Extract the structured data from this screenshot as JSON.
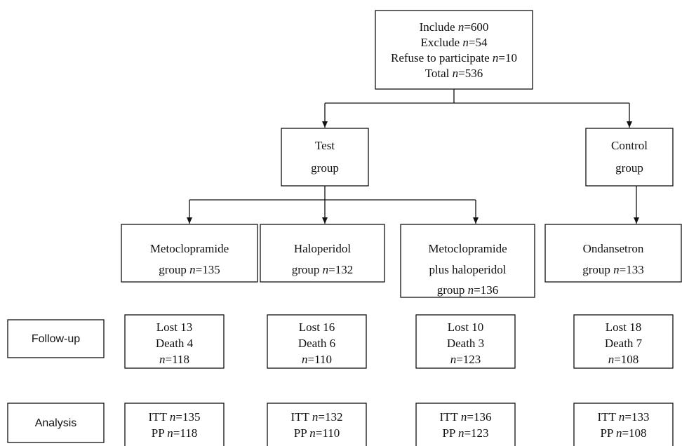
{
  "enrollment": {
    "lines": [
      "Include n=600",
      "Exclude n=54",
      "Refuse to participate n=10",
      "Total n=536"
    ]
  },
  "groups": [
    {
      "lines": [
        "Test",
        "group"
      ]
    },
    {
      "lines": [
        "Control",
        "group"
      ]
    }
  ],
  "arms": [
    {
      "lines": [
        "Metoclopramide",
        "group n=135"
      ]
    },
    {
      "lines": [
        "Haloperidol",
        "group n=132"
      ]
    },
    {
      "lines": [
        "Metoclopramide",
        "plus haloperidol",
        "group n=136"
      ]
    },
    {
      "lines": [
        "Ondansetron",
        "group n=133"
      ]
    }
  ],
  "follow_up": {
    "label": "Follow-up",
    "boxes": [
      {
        "lines": [
          "Lost 13",
          "Death 4",
          "n=118"
        ]
      },
      {
        "lines": [
          "Lost 16",
          "Death 6",
          "n=110"
        ]
      },
      {
        "lines": [
          "Lost 10",
          "Death 3",
          "n=123"
        ]
      },
      {
        "lines": [
          "Lost 18",
          "Death 7",
          "n=108"
        ]
      }
    ]
  },
  "analysis": {
    "label": "Analysis",
    "boxes": [
      {
        "lines": [
          "ITT n=135",
          "PP n=118"
        ]
      },
      {
        "lines": [
          "ITT n=132",
          "PP n=110"
        ]
      },
      {
        "lines": [
          "ITT n=136",
          "PP n=123"
        ]
      },
      {
        "lines": [
          "ITT n=133",
          "PP n=108"
        ]
      }
    ]
  }
}
